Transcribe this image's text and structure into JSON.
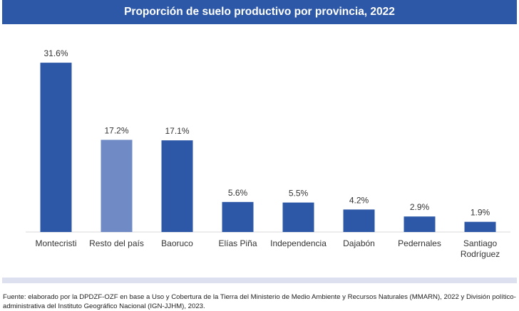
{
  "header": {
    "title": "Proporción de suelo productivo por provincia, 2022"
  },
  "footer": {
    "source": "Fuente: elaborado por la DPDZF-OZF en base a Uso y Cobertura de la Tierra del Ministerio de Medio Ambiente y Recursos Naturales (MMARN), 2022 y División político-administrativa del Instituto Geográfico Nacional (IGN-JJHM), 2023."
  },
  "colors": {
    "bar": "#2d58a7",
    "bar_highlight": "#6f8ac4",
    "title_bg": "#2d58a7",
    "axis": "#d9d9d9",
    "band": "#dde0ee"
  },
  "chart_data": {
    "type": "bar",
    "title": "",
    "xlabel": "",
    "ylabel": "",
    "ylim": [
      0,
      35
    ],
    "grid": false,
    "categories": [
      "Montecristi",
      "Resto del país",
      "Baoruco",
      "Elías Piña",
      "Independencia",
      "Dajabón",
      "Pedernales",
      "Santiago Rodríguez"
    ],
    "values": [
      31.6,
      17.2,
      17.1,
      5.6,
      5.5,
      4.2,
      2.9,
      1.9
    ],
    "data_labels": [
      "31.6%",
      "17.2%",
      "17.1%",
      "5.6%",
      "5.5%",
      "4.2%",
      "2.9%",
      "1.9%"
    ],
    "highlight": [
      "Resto del país"
    ]
  }
}
